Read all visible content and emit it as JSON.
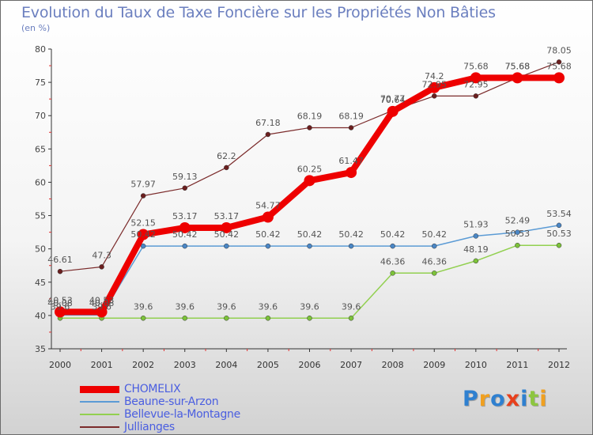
{
  "title": "Evolution du Taux de Taxe Foncière sur les Propriétés Non Bâties",
  "subtitle": "(en %)",
  "colors": {
    "CHOMELIX": "#ee0000",
    "Beaune-sur-Arzon": "#5b9bd5",
    "Bellevue-la-Montagne": "#92d050",
    "Jullianges": "#7b2b2b"
  },
  "logo": {
    "text": "Proxiti",
    "letter_colors": [
      "#2f80d0",
      "#f0a020",
      "#2f80d0",
      "#e8401c",
      "#2f80d0",
      "#8cc63f",
      "#f0a020"
    ]
  },
  "chart_data": {
    "type": "line",
    "title": "Evolution du Taux de Taxe Foncière sur les Propriétés Non Bâties",
    "ylabel": "(en %)",
    "x": [
      "2000",
      "2001",
      "2002",
      "2003",
      "2004",
      "2005",
      "2006",
      "2007",
      "2008",
      "2009",
      "2010",
      "2011",
      "2012"
    ],
    "ylim": [
      35,
      80
    ],
    "yticks": [
      "35",
      "40",
      "45",
      "50",
      "55",
      "60",
      "65",
      "70",
      "75",
      "80"
    ],
    "grid": false,
    "legend_position": "bottom-left",
    "series": [
      {
        "name": "Jullianges",
        "values": [
          46.61,
          47.3,
          57.97,
          59.13,
          62.2,
          67.18,
          68.19,
          68.19,
          70.77,
          72.95,
          72.95,
          75.68,
          78.05
        ],
        "labels": [
          "46.61",
          "47.3",
          "57.97",
          "59.13",
          "62.2",
          "67.18",
          "68.19",
          "68.19",
          "70.77",
          "72.95",
          "72.95",
          "75.68",
          "78.05"
        ]
      },
      {
        "name": "Bellevue-la-Montagne",
        "values": [
          39.6,
          39.6,
          39.6,
          39.6,
          39.6,
          39.6,
          39.6,
          39.6,
          46.36,
          46.36,
          48.19,
          50.53,
          50.53
        ],
        "labels": [
          "39.6",
          "39.6",
          "39.6",
          "39.6",
          "39.6",
          "39.6",
          "39.6",
          "39.6",
          "46.36",
          "46.36",
          "48.19",
          "50.53",
          "50.53"
        ]
      },
      {
        "name": "Beaune-sur-Arzon",
        "values": [
          40.08,
          40.08,
          50.42,
          50.42,
          50.42,
          50.42,
          50.42,
          50.42,
          50.42,
          50.42,
          51.93,
          52.49,
          53.54
        ],
        "labels": [
          "40.08",
          "40.08",
          "50.42",
          "50.42",
          "50.42",
          "50.42",
          "50.42",
          "50.42",
          "50.42",
          "50.42",
          "51.93",
          "52.49",
          "53.54"
        ]
      },
      {
        "name": "CHOMELIX",
        "values": [
          40.53,
          40.53,
          52.15,
          53.17,
          53.17,
          54.77,
          60.25,
          61.47,
          70.64,
          74.2,
          75.68,
          75.68,
          75.68
        ],
        "labels": [
          "40.53",
          "40.53",
          "52.15",
          "53.17",
          "53.17",
          "54.77",
          "60.25",
          "61.47",
          "70.64",
          "74.2",
          "75.68",
          "75.68",
          "75.68"
        ]
      }
    ],
    "legend": [
      "CHOMELIX",
      "Beaune-sur-Arzon",
      "Bellevue-la-Montagne",
      "Jullianges"
    ]
  }
}
